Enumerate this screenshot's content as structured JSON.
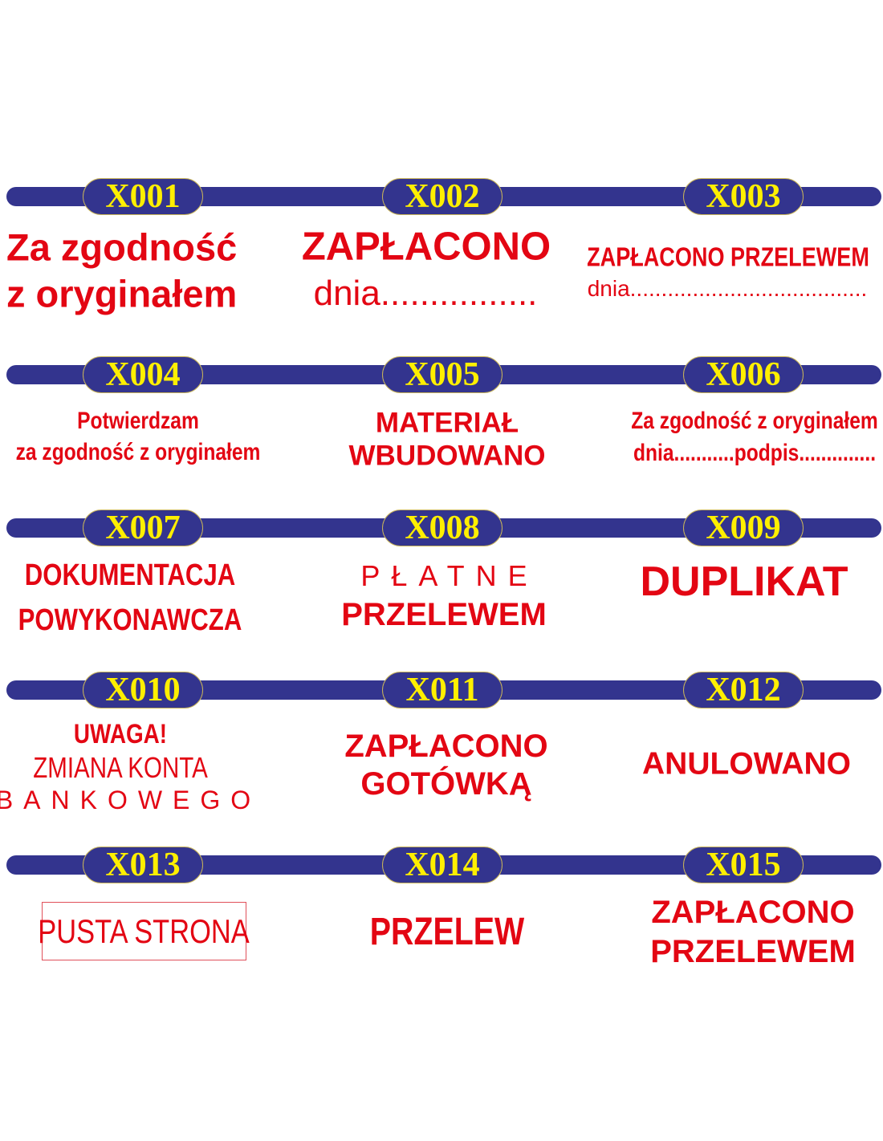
{
  "colors": {
    "bar": "#33348e",
    "code_text": "#ffef00",
    "stamp_text": "#e30613"
  },
  "stamps": [
    {
      "code": "X001",
      "lines": [
        "Za zgodność",
        "z oryginałem"
      ]
    },
    {
      "code": "X002",
      "lines": [
        "ZAPŁACONO",
        "dnia................"
      ]
    },
    {
      "code": "X003",
      "lines": [
        "ZAPŁACONO PRZELEWEM",
        "dnia......................................"
      ]
    },
    {
      "code": "X004",
      "lines": [
        "Potwierdzam",
        "za zgodność z oryginałem"
      ]
    },
    {
      "code": "X005",
      "lines": [
        "MATERIAŁ",
        "WBUDOWANO"
      ]
    },
    {
      "code": "X006",
      "lines": [
        "Za zgodność z oryginałem",
        "dnia...........podpis.............."
      ]
    },
    {
      "code": "X007",
      "lines": [
        "DOKUMENTACJA",
        "POWYKONAWCZA"
      ]
    },
    {
      "code": "X008",
      "lines": [
        "PŁATNE",
        "PRZELEWEM"
      ]
    },
    {
      "code": "X009",
      "lines": [
        "DUPLIKAT"
      ]
    },
    {
      "code": "X010",
      "lines": [
        "UWAGA!",
        "ZMIANA KONTA",
        "BANKOWEGO"
      ]
    },
    {
      "code": "X011",
      "lines": [
        "ZAPŁACONO",
        "GOTÓWKĄ"
      ]
    },
    {
      "code": "X012",
      "lines": [
        "ANULOWANO"
      ]
    },
    {
      "code": "X013",
      "lines": [
        "PUSTA STRONA"
      ]
    },
    {
      "code": "X014",
      "lines": [
        "PRZELEW"
      ]
    },
    {
      "code": "X015",
      "lines": [
        "ZAPŁACONO",
        "PRZELEWEM"
      ]
    }
  ]
}
